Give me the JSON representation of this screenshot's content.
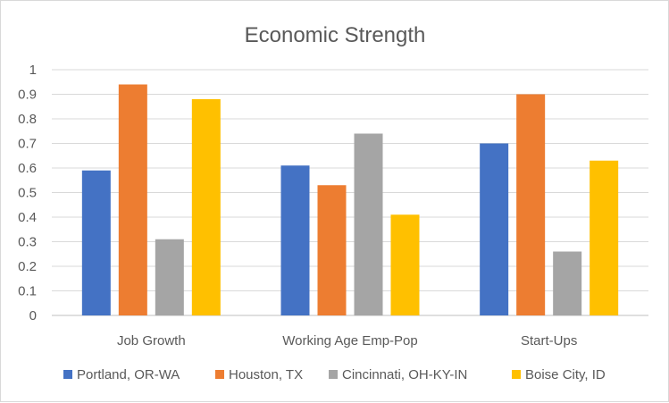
{
  "chart_data": {
    "type": "bar",
    "title": "Economic Strength",
    "categories": [
      "Job Growth",
      "Working Age Emp-Pop",
      "Start-Ups"
    ],
    "series": [
      {
        "name": "Portland, OR-WA",
        "color": "#4472c4",
        "values": [
          0.59,
          0.61,
          0.7
        ]
      },
      {
        "name": "Houston, TX",
        "color": "#ed7d31",
        "values": [
          0.94,
          0.53,
          0.9
        ]
      },
      {
        "name": "Cincinnati, OH-KY-IN",
        "color": "#a5a5a5",
        "values": [
          0.31,
          0.74,
          0.26
        ]
      },
      {
        "name": "Boise City, ID",
        "color": "#ffc000",
        "values": [
          0.88,
          0.41,
          0.63
        ]
      }
    ],
    "y_ticks": [
      "0",
      "0.1",
      "0.2",
      "0.3",
      "0.4",
      "0.5",
      "0.6",
      "0.7",
      "0.8",
      "0.9",
      "1"
    ],
    "ylim": [
      0,
      1
    ],
    "xlabel": "",
    "ylabel": "",
    "grid": true,
    "legend_position": "bottom"
  }
}
